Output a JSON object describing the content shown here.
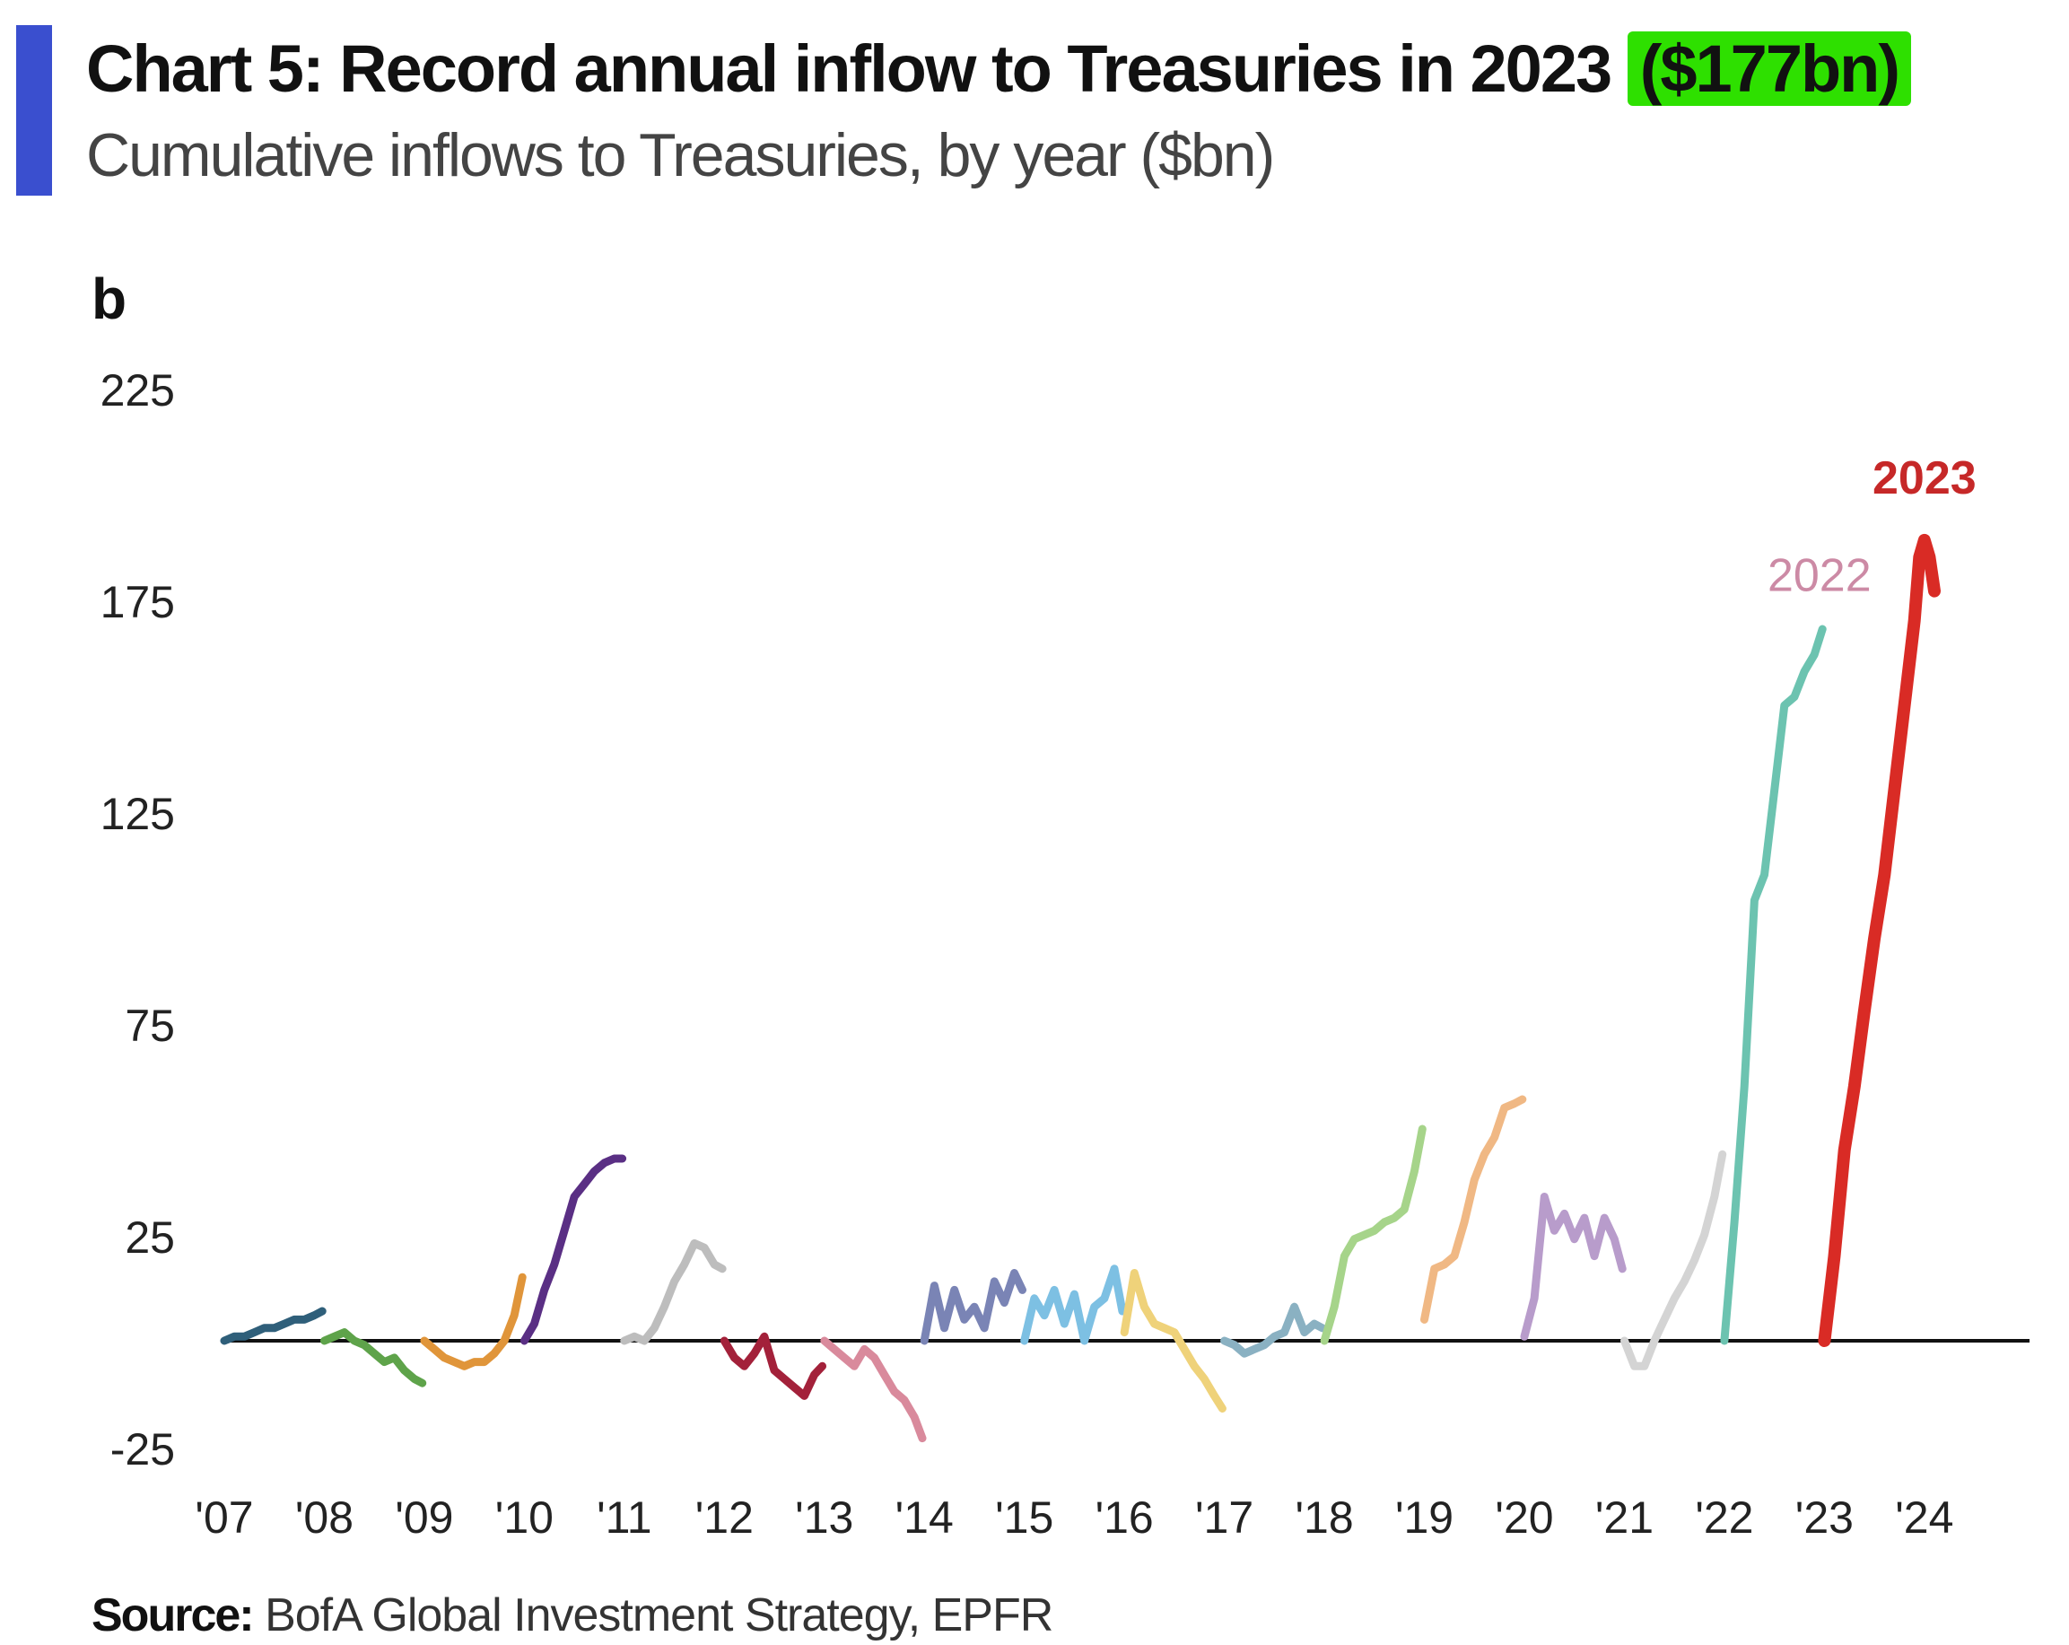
{
  "header": {
    "title": "Chart 5: Record annual inflow to Treasuries in 2023",
    "title_highlight": "($177bn)",
    "subtitle": "Cumulative inflows to Treasuries, by year ($bn)",
    "unit_label": "b"
  },
  "footer": {
    "source_label": "Source:",
    "source_text": "BofA Global Investment Strategy, EPFR"
  },
  "colors": {
    "accent": "#3a4fcf",
    "highlight": "#2ee000"
  },
  "chart_data": {
    "type": "line",
    "title": "Record annual inflow to Treasuries in 2023",
    "ylabel": "$bn",
    "ylim": [
      -25,
      225
    ],
    "xlim": [
      2007,
      2024.45
    ],
    "yticks": [
      -25,
      25,
      75,
      125,
      175,
      225
    ],
    "xtick_labels": [
      "'07",
      "'08",
      "'09",
      "'10",
      "'11",
      "'12",
      "'13",
      "'14",
      "'15",
      "'16",
      "'17",
      "'18",
      "'19",
      "'20",
      "'21",
      "'22",
      "'23",
      "'24"
    ],
    "xtick_values": [
      2007,
      2008,
      2009,
      2010,
      2011,
      2012,
      2013,
      2014,
      2015,
      2016,
      2017,
      2018,
      2019,
      2020,
      2021,
      2022,
      2023,
      2024
    ],
    "zero_line": true,
    "grid": false,
    "series": [
      {
        "name": "2007",
        "color": "#2f5f7a",
        "x": [
          2007,
          2007.1,
          2007.2,
          2007.3,
          2007.4,
          2007.5,
          2007.6,
          2007.7,
          2007.8,
          2007.9,
          2007.98
        ],
        "y": [
          0,
          1,
          1,
          2,
          3,
          3,
          4,
          5,
          5,
          6,
          7
        ]
      },
      {
        "name": "2008",
        "color": "#5ea34a",
        "x": [
          2008,
          2008.1,
          2008.2,
          2008.3,
          2008.4,
          2008.5,
          2008.6,
          2008.7,
          2008.8,
          2008.9,
          2008.98
        ],
        "y": [
          0,
          1,
          2,
          0,
          -1,
          -3,
          -5,
          -4,
          -7,
          -9,
          -10
        ]
      },
      {
        "name": "2009",
        "color": "#e0953a",
        "x": [
          2009,
          2009.1,
          2009.2,
          2009.3,
          2009.4,
          2009.5,
          2009.6,
          2009.7,
          2009.8,
          2009.9,
          2009.98
        ],
        "y": [
          0,
          -2,
          -4,
          -5,
          -6,
          -5,
          -5,
          -3,
          0,
          6,
          15
        ]
      },
      {
        "name": "2010",
        "color": "#5a2f84",
        "x": [
          2010,
          2010.1,
          2010.2,
          2010.3,
          2010.4,
          2010.5,
          2010.6,
          2010.7,
          2010.8,
          2010.9,
          2010.98
        ],
        "y": [
          0,
          4,
          12,
          18,
          26,
          34,
          37,
          40,
          42,
          43,
          43
        ]
      },
      {
        "name": "2011",
        "color": "#bdbdbd",
        "x": [
          2011,
          2011.1,
          2011.2,
          2011.3,
          2011.4,
          2011.5,
          2011.6,
          2011.7,
          2011.8,
          2011.9,
          2011.98
        ],
        "y": [
          0,
          1,
          0,
          3,
          8,
          14,
          18,
          23,
          22,
          18,
          17
        ]
      },
      {
        "name": "2012",
        "color": "#a3213a",
        "x": [
          2012,
          2012.1,
          2012.2,
          2012.3,
          2012.4,
          2012.5,
          2012.6,
          2012.7,
          2012.8,
          2012.9,
          2012.98
        ],
        "y": [
          0,
          -4,
          -6,
          -3,
          1,
          -7,
          -9,
          -11,
          -13,
          -8,
          -6
        ]
      },
      {
        "name": "2013",
        "color": "#d98a9c",
        "x": [
          2013,
          2013.1,
          2013.2,
          2013.3,
          2013.4,
          2013.5,
          2013.6,
          2013.7,
          2013.8,
          2013.9,
          2013.98
        ],
        "y": [
          0,
          -2,
          -4,
          -6,
          -2,
          -4,
          -8,
          -12,
          -14,
          -18,
          -23
        ]
      },
      {
        "name": "2014",
        "color": "#7a84b5",
        "x": [
          2014,
          2014.1,
          2014.2,
          2014.3,
          2014.4,
          2014.5,
          2014.6,
          2014.7,
          2014.8,
          2014.9,
          2014.98
        ],
        "y": [
          0,
          13,
          3,
          12,
          5,
          8,
          3,
          14,
          9,
          16,
          12
        ]
      },
      {
        "name": "2015",
        "color": "#7dc0e3",
        "x": [
          2015,
          2015.1,
          2015.2,
          2015.3,
          2015.4,
          2015.5,
          2015.6,
          2015.7,
          2015.8,
          2015.9,
          2015.98
        ],
        "y": [
          0,
          10,
          6,
          12,
          4,
          11,
          0,
          8,
          10,
          17,
          7
        ]
      },
      {
        "name": "2016",
        "color": "#efd27a",
        "x": [
          2016,
          2016.1,
          2016.2,
          2016.3,
          2016.4,
          2016.5,
          2016.6,
          2016.7,
          2016.8,
          2016.9,
          2016.98
        ],
        "y": [
          2,
          16,
          8,
          4,
          3,
          2,
          -2,
          -6,
          -9,
          -13,
          -16
        ]
      },
      {
        "name": "2017",
        "color": "#8ab1c2",
        "x": [
          2017,
          2017.1,
          2017.2,
          2017.3,
          2017.4,
          2017.5,
          2017.6,
          2017.7,
          2017.8,
          2017.9,
          2017.98
        ],
        "y": [
          0,
          -1,
          -3,
          -2,
          -1,
          1,
          2,
          8,
          2,
          4,
          3
        ]
      },
      {
        "name": "2018",
        "color": "#a6d48a",
        "x": [
          2018,
          2018.1,
          2018.2,
          2018.3,
          2018.4,
          2018.5,
          2018.6,
          2018.7,
          2018.8,
          2018.9,
          2018.98
        ],
        "y": [
          0,
          8,
          20,
          24,
          25,
          26,
          28,
          29,
          31,
          40,
          50
        ]
      },
      {
        "name": "2019",
        "color": "#f0b884",
        "x": [
          2019,
          2019.1,
          2019.2,
          2019.3,
          2019.4,
          2019.5,
          2019.6,
          2019.7,
          2019.8,
          2019.9,
          2019.98
        ],
        "y": [
          5,
          17,
          18,
          20,
          28,
          38,
          44,
          48,
          55,
          56,
          57
        ]
      },
      {
        "name": "2020",
        "color": "#b89ccb",
        "x": [
          2020,
          2020.1,
          2020.2,
          2020.3,
          2020.4,
          2020.5,
          2020.6,
          2020.7,
          2020.8,
          2020.9,
          2020.98
        ],
        "y": [
          1,
          10,
          34,
          26,
          30,
          24,
          29,
          20,
          29,
          24,
          17
        ]
      },
      {
        "name": "2021",
        "color": "#d4d4d4",
        "x": [
          2021,
          2021.1,
          2021.2,
          2021.3,
          2021.4,
          2021.5,
          2021.6,
          2021.7,
          2021.8,
          2021.9,
          2021.98
        ],
        "y": [
          0,
          -6,
          -6,
          0,
          5,
          10,
          14,
          19,
          25,
          34,
          44
        ]
      },
      {
        "name": "2022",
        "color": "#6cc3b0",
        "x": [
          2022,
          2022.1,
          2022.2,
          2022.3,
          2022.4,
          2022.5,
          2022.6,
          2022.7,
          2022.8,
          2022.9,
          2022.98
        ],
        "y": [
          0,
          28,
          60,
          104,
          110,
          130,
          150,
          152,
          158,
          162,
          168
        ]
      },
      {
        "name": "2023",
        "color": "#d92b25",
        "x": [
          2023,
          2023.1,
          2023.2,
          2023.3,
          2023.4,
          2023.5,
          2023.6,
          2023.7,
          2023.8,
          2023.9,
          2023.95,
          2024.0,
          2024.05,
          2024.1
        ],
        "y": [
          0,
          20,
          45,
          60,
          78,
          95,
          110,
          130,
          150,
          170,
          185,
          189,
          185,
          177
        ]
      }
    ],
    "annotations": [
      {
        "text": "2022",
        "color": "#cc8aa5",
        "x": 2022.95,
        "y": 177
      },
      {
        "text": "2023",
        "color": "#c62828",
        "x": 2024.0,
        "y": 200
      }
    ]
  }
}
